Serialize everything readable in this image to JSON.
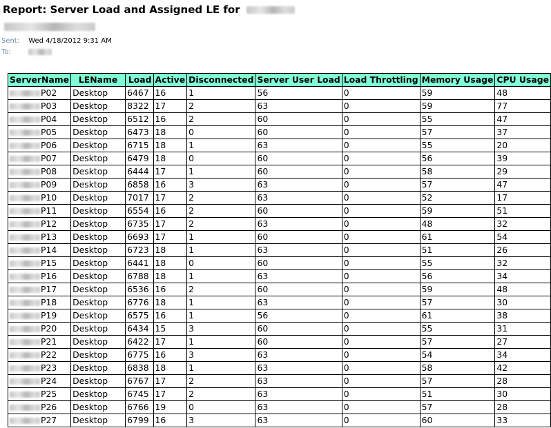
{
  "email": {
    "subject": "Report: Server Load and Assigned LE for",
    "sent_label": "Sent:",
    "sent_value": "Wed 4/18/2012 9:31 AM",
    "to_label": "To:"
  },
  "table": {
    "columns": [
      "ServerName",
      "LEName",
      "Load",
      "Active",
      "Disconnected",
      "Server User Load",
      "Load Throttling",
      "Memory Usage",
      "CPU Usage"
    ],
    "rows": [
      [
        "P02",
        "Desktop",
        "6467",
        "16",
        "1",
        "56",
        "0",
        "59",
        "48"
      ],
      [
        "P03",
        "Desktop",
        "8322",
        "17",
        "2",
        "63",
        "0",
        "59",
        "77"
      ],
      [
        "P04",
        "Desktop",
        "6512",
        "16",
        "2",
        "60",
        "0",
        "55",
        "47"
      ],
      [
        "P05",
        "Desktop",
        "6473",
        "18",
        "0",
        "60",
        "0",
        "57",
        "37"
      ],
      [
        "P06",
        "Desktop",
        "6715",
        "18",
        "1",
        "63",
        "0",
        "55",
        "20"
      ],
      [
        "P07",
        "Desktop",
        "6479",
        "18",
        "0",
        "60",
        "0",
        "56",
        "39"
      ],
      [
        "P08",
        "Desktop",
        "6444",
        "17",
        "1",
        "60",
        "0",
        "58",
        "29"
      ],
      [
        "P09",
        "Desktop",
        "6858",
        "16",
        "3",
        "63",
        "0",
        "57",
        "47"
      ],
      [
        "P10",
        "Desktop",
        "7017",
        "17",
        "2",
        "63",
        "0",
        "52",
        "17"
      ],
      [
        "P11",
        "Desktop",
        "6554",
        "16",
        "2",
        "60",
        "0",
        "59",
        "51"
      ],
      [
        "P12",
        "Desktop",
        "6735",
        "17",
        "2",
        "63",
        "0",
        "48",
        "32"
      ],
      [
        "P13",
        "Desktop",
        "6693",
        "17",
        "1",
        "60",
        "0",
        "61",
        "54"
      ],
      [
        "P14",
        "Desktop",
        "6723",
        "18",
        "1",
        "63",
        "0",
        "51",
        "26"
      ],
      [
        "P15",
        "Desktop",
        "6441",
        "18",
        "0",
        "60",
        "0",
        "55",
        "32"
      ],
      [
        "P16",
        "Desktop",
        "6788",
        "18",
        "1",
        "63",
        "0",
        "56",
        "34"
      ],
      [
        "P17",
        "Desktop",
        "6536",
        "16",
        "2",
        "60",
        "0",
        "59",
        "48"
      ],
      [
        "P18",
        "Desktop",
        "6776",
        "18",
        "1",
        "63",
        "0",
        "57",
        "30"
      ],
      [
        "P19",
        "Desktop",
        "6575",
        "16",
        "1",
        "56",
        "0",
        "61",
        "38"
      ],
      [
        "P20",
        "Desktop",
        "6434",
        "15",
        "3",
        "60",
        "0",
        "55",
        "31"
      ],
      [
        "P21",
        "Desktop",
        "6422",
        "17",
        "1",
        "60",
        "0",
        "57",
        "27"
      ],
      [
        "P22",
        "Desktop",
        "6775",
        "16",
        "3",
        "63",
        "0",
        "54",
        "34"
      ],
      [
        "P23",
        "Desktop",
        "6838",
        "18",
        "1",
        "63",
        "0",
        "58",
        "42"
      ],
      [
        "P24",
        "Desktop",
        "6767",
        "17",
        "2",
        "63",
        "0",
        "57",
        "28"
      ],
      [
        "P25",
        "Desktop",
        "6745",
        "17",
        "2",
        "63",
        "0",
        "51",
        "30"
      ],
      [
        "P26",
        "Desktop",
        "6766",
        "19",
        "0",
        "63",
        "0",
        "57",
        "28"
      ],
      [
        "P27",
        "Desktop",
        "6799",
        "16",
        "3",
        "63",
        "0",
        "60",
        "33"
      ]
    ]
  }
}
